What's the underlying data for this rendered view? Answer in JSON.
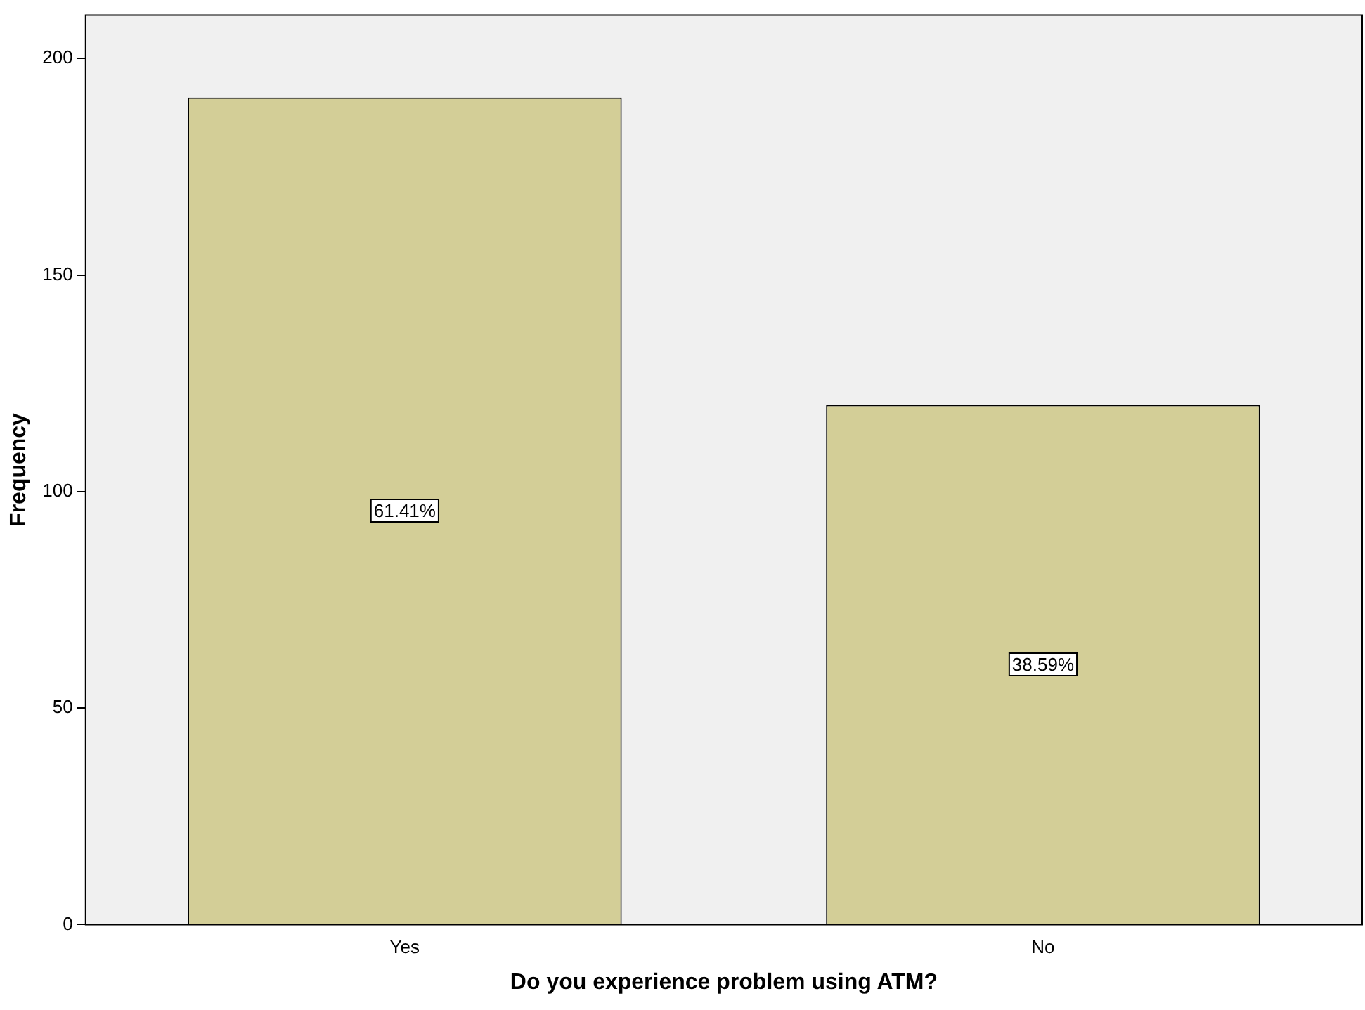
{
  "chart_data": {
    "type": "bar",
    "xlabel": "Do you experience problem using ATM?",
    "ylabel": "Frequency",
    "categories": [
      "Yes",
      "No"
    ],
    "values": [
      191,
      120
    ],
    "annotations": [
      "61.41%",
      "38.59%"
    ],
    "color": "#d3ce97",
    "ylim": [
      0,
      210
    ],
    "yticks": [
      0,
      50,
      100,
      150,
      200
    ],
    "grid": false,
    "legend": false
  }
}
